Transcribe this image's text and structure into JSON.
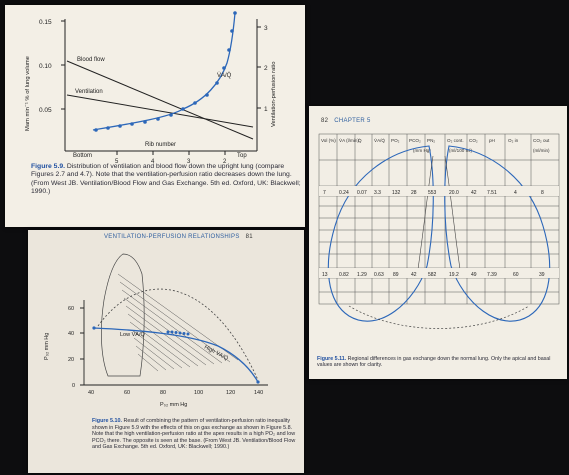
{
  "figure_5_9": {
    "y_axis_left_label": "Mam min⁻¹ % of lung volume",
    "y_axis_right_label": "Ventilation-perfusion ratio",
    "y_ticks_left": [
      "0.15",
      "0.10",
      "0.05"
    ],
    "y_ticks_right": [
      "3",
      "2",
      "1"
    ],
    "x_ticks": [
      "5",
      "4",
      "3",
      "2"
    ],
    "label_blood_flow": "Blood flow",
    "label_ventilation": "Ventilation",
    "label_va_q": "V̇A/Q̇",
    "label_bottom": "Bottom",
    "label_top": "Top",
    "label_rib_number": "Rib number",
    "caption_number": "Figure 5.9.",
    "caption_text": "Distribution of ventilation and blood flow down the upright lung (compare Figures 2.7 and 4.7). Note that the ventilation-perfusion ratio decreases down the lung. (From West JB. Ventilation/Blood Flow and Gas Exchange. 5th ed. Oxford, UK: Blackwell; 1990.)",
    "colors": {
      "va_q_curve": "#2c67b9",
      "lines": "#222222"
    }
  },
  "figure_5_10": {
    "page_header": "VENTILATION-PERFUSION RELATIONSHIPS",
    "page_number": "81",
    "y_axis_label": "P₀₂ mm Hg",
    "y_ticks": [
      "60",
      "40",
      "20",
      "0"
    ],
    "x_ticks": [
      "40",
      "60",
      "80",
      "100",
      "120",
      "140"
    ],
    "x_axis_label": "P₀₂ mm Hg",
    "label_low": "Low V̇A/Q̇",
    "label_high": "High V̇A/Q̇",
    "caption_number": "Figure 5.10.",
    "caption_text": "Result of combining the pattern of ventilation-perfusion ratio inequality shown in Figure 5.9 with the effects of this on gas exchange as shown in Figure 5.8. Note that the high ventilation-perfusion ratio at the apex results in a high PO₂ and low PCO₂ there. The opposite is seen at the base. (From West JB. Ventilation/Blood Flow and Gas Exchange. 5th ed. Oxford, UK: Blackwell; 1990.)"
  },
  "figure_5_11": {
    "page_number": "82",
    "chapter": "CHAPTER 5",
    "table_headers": [
      "Vol (%)",
      "V̇A (l/min)",
      "Q̇",
      "V̇A/Q̇",
      "PO₂",
      "PCO₂",
      "PN₂",
      "O₂ cont.",
      "CO₂",
      "pH",
      "O₂ in",
      "CO₂ out"
    ],
    "header_units": "(mm Hg)",
    "header_content_units": "(ml/100 ml)",
    "header_flow_units": "(ml/min)",
    "row_apex": [
      "7",
      "0.24",
      "0.07",
      "3.3",
      "132",
      "28",
      "553",
      "20.0",
      "42",
      "7.51",
      "4",
      "8"
    ],
    "row_base": [
      "13",
      "0.82",
      "1.29",
      "0.63",
      "89",
      "42",
      "582",
      "19.2",
      "49",
      "7.39",
      "60",
      "39"
    ],
    "caption_number": "Figure 5.11.",
    "caption_text": "Regional differences in gas exchange down the normal lung. Only the apical and basal values are shown for clarity."
  }
}
